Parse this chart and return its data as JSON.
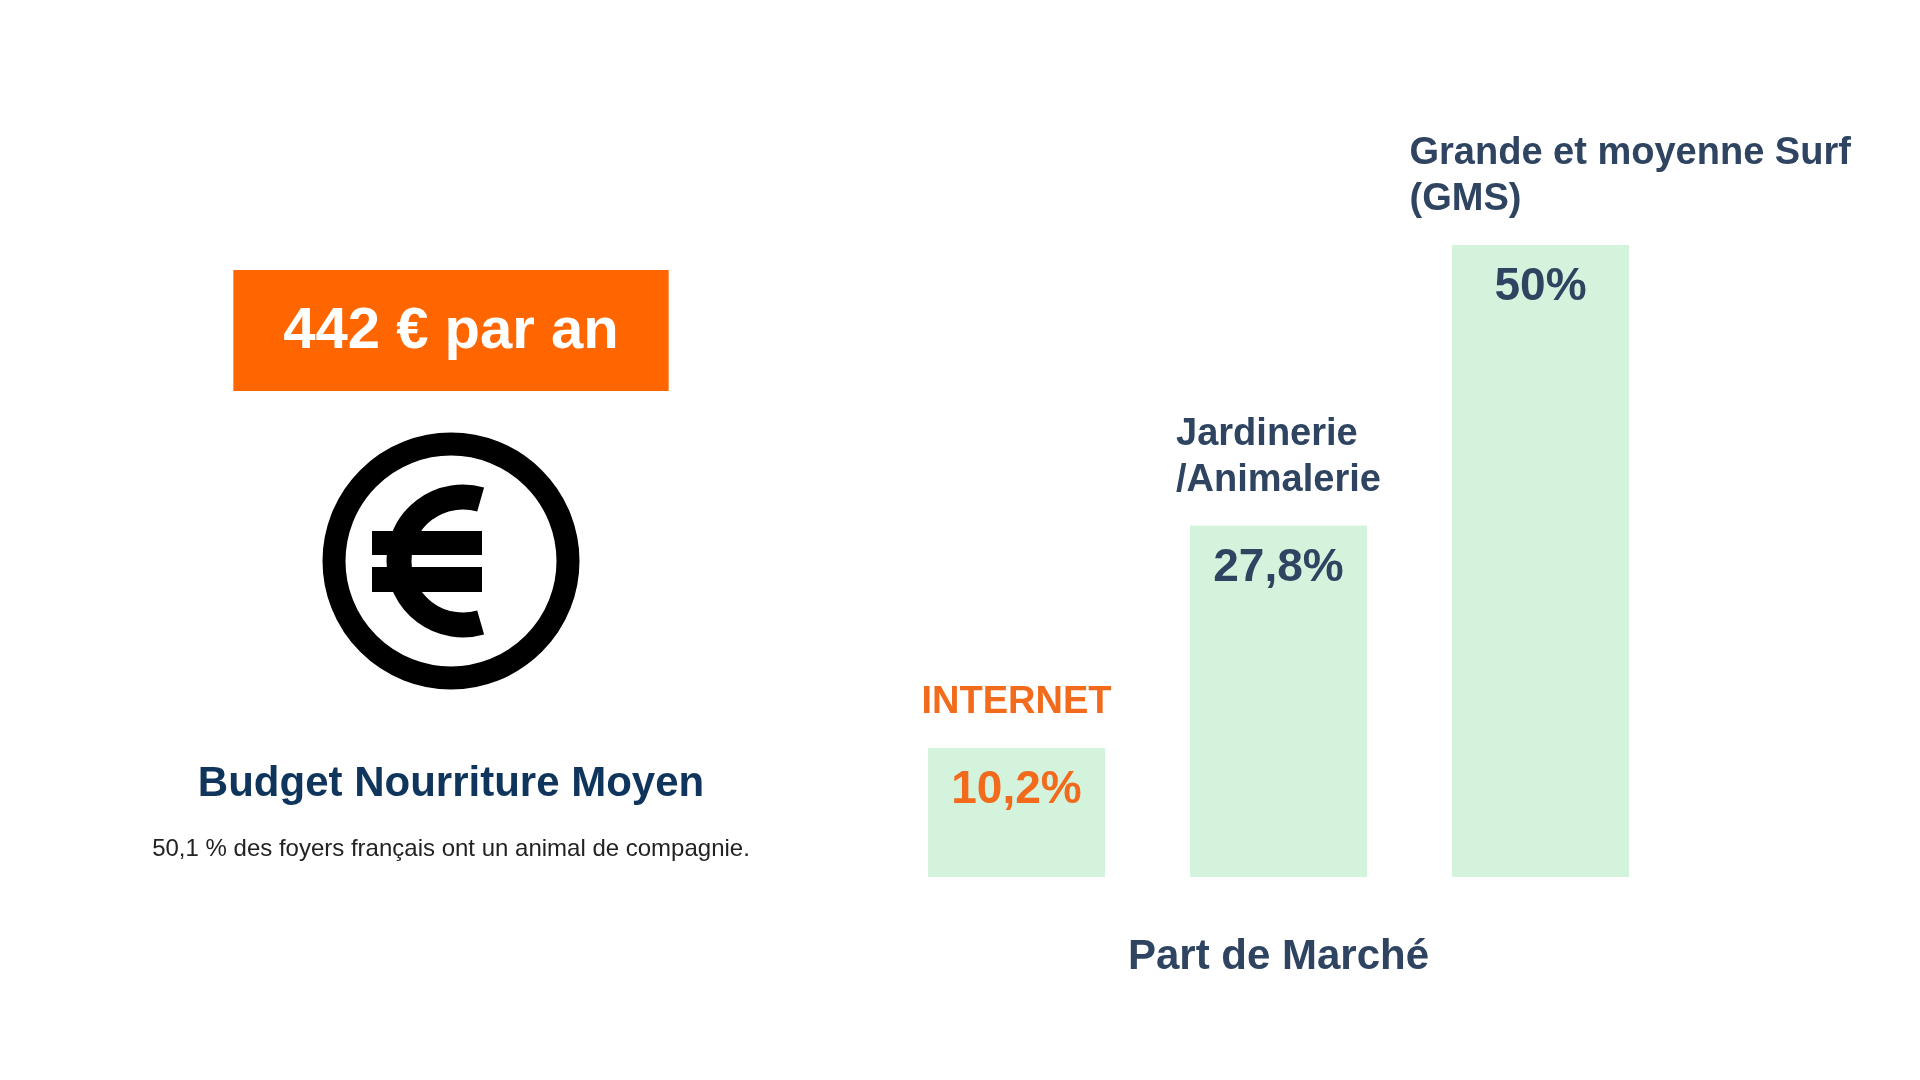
{
  "chart_data": [
    {
      "type": "other",
      "title": "Budget Nourriture Moyen",
      "subtitle": "50,1 % des foyers français ont un animal de compagnie.",
      "annotations": [
        "442 € par an"
      ]
    },
    {
      "type": "bar",
      "categories": [
        "INTERNET",
        "Jardinerie /Animalerie",
        "Grande et moyenne Surf (GMS)"
      ],
      "values": [
        10.2,
        27.8,
        50
      ],
      "color": "#d3f3dd",
      "value_labels": [
        "10,2%",
        "27,8%",
        "50%"
      ],
      "xlabel": "Part de Marché",
      "tick_labels": "x"
    }
  ]
}
